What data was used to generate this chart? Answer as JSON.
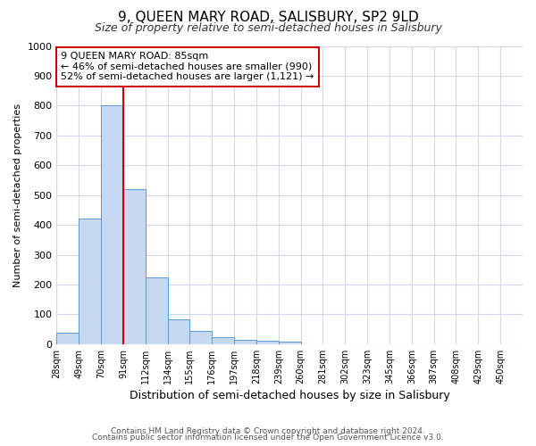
{
  "title": "9, QUEEN MARY ROAD, SALISBURY, SP2 9LD",
  "subtitle": "Size of property relative to semi-detached houses in Salisbury",
  "xlabel": "Distribution of semi-detached houses by size in Salisbury",
  "ylabel": "Number of semi-detached properties",
  "bar_values": [
    38,
    420,
    800,
    520,
    225,
    82,
    43,
    22,
    15,
    10,
    8,
    0,
    0,
    0,
    0,
    0,
    0,
    0,
    0,
    0
  ],
  "bin_labels": [
    "28sqm",
    "49sqm",
    "70sqm",
    "91sqm",
    "112sqm",
    "134sqm",
    "155sqm",
    "176sqm",
    "197sqm",
    "218sqm",
    "239sqm",
    "260sqm",
    "281sqm",
    "302sqm",
    "323sqm",
    "345sqm",
    "366sqm",
    "387sqm",
    "408sqm",
    "429sqm",
    "450sqm"
  ],
  "bar_color": "#c6d9f1",
  "bar_edge_color": "#5b9bd5",
  "property_line_x": 3,
  "property_line_color": "#cc0000",
  "annotation_box_text": "9 QUEEN MARY ROAD: 85sqm\n← 46% of semi-detached houses are smaller (990)\n52% of semi-detached houses are larger (1,121) →",
  "annotation_box_color": "#ffffff",
  "annotation_box_edge_color": "#cc0000",
  "ylim": [
    0,
    1000
  ],
  "yticks": [
    0,
    100,
    200,
    300,
    400,
    500,
    600,
    700,
    800,
    900,
    1000
  ],
  "footer_line1": "Contains HM Land Registry data © Crown copyright and database right 2024.",
  "footer_line2": "Contains public sector information licensed under the Open Government Licence v3.0.",
  "bg_color": "#ffffff",
  "grid_color": "#d0d8e8"
}
